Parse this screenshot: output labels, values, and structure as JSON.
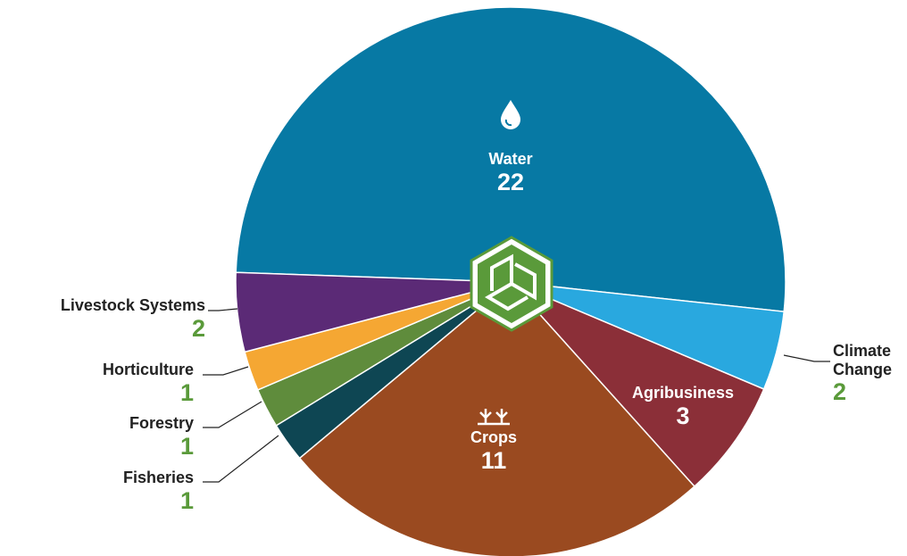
{
  "chart_data": {
    "type": "pie",
    "categories": [
      "Water",
      "Climate Change",
      "Agribusiness",
      "Crops",
      "Fisheries",
      "Forestry",
      "Horticulture",
      "Livestock Systems"
    ],
    "values": [
      22,
      2,
      3,
      11,
      1,
      1,
      1,
      2
    ],
    "colors": [
      "#0779a4",
      "#29a8df",
      "#8b2f38",
      "#9a4a20",
      "#0e4653",
      "#5f8c3c",
      "#f5a733",
      "#5b2a76"
    ]
  }
}
